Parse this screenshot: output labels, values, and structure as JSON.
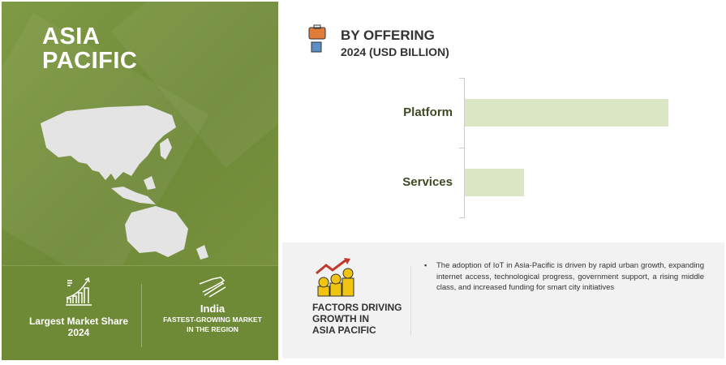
{
  "region": {
    "title_line1": "ASIA",
    "title_line2": "PACIFIC"
  },
  "stats": [
    {
      "icon": "bar-chart-growth-icon",
      "label": "Largest Market Share 2024"
    },
    {
      "icon": "rocket-arrows-icon",
      "value": "India",
      "label_line1": "FASTEST-GROWING MARKET",
      "label_line2": "IN THE REGION"
    }
  ],
  "chart_heading": {
    "title": "BY OFFERING",
    "subtitle": "2024 (USD BILLION)",
    "icon": "briefcase-hand-icon"
  },
  "chart_data": {
    "type": "bar",
    "orientation": "horizontal",
    "title": "BY OFFERING",
    "subtitle": "2024 (USD BILLION)",
    "categories": [
      "Platform",
      "Services"
    ],
    "values": [
      100,
      29
    ],
    "value_scale": "relative (no values printed)",
    "bar_color": "#dbe6c4",
    "grid": false
  },
  "factors": {
    "icon": "money-growth-icon",
    "title_line1": "FACTORS DRIVING",
    "title_line2": "GROWTH IN",
    "title_line3": "ASIA PACIFIC",
    "bullets": [
      "The adoption of IoT in Asia-Pacific is driven by rapid urban growth, expanding internet access, technological progress, government support, a rising middle class, and increased funding for smart city initiatives"
    ]
  },
  "colors": {
    "panel_green": "#7a9440",
    "bar": "#dbe6c4",
    "label_green": "#3d4a22"
  }
}
